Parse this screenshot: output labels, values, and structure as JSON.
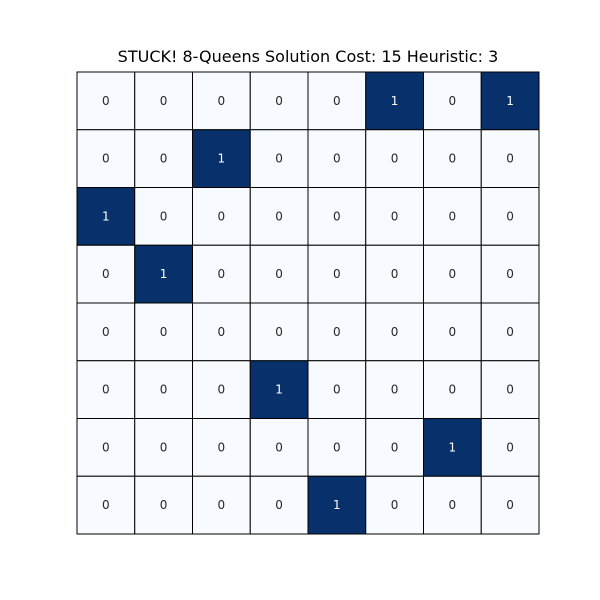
{
  "chart_data": {
    "type": "heatmap",
    "title": "STUCK! 8-Queens Solution Cost: 15 Heuristic: 3",
    "rows": 8,
    "cols": 8,
    "values": [
      [
        0,
        0,
        0,
        0,
        0,
        1,
        0,
        1
      ],
      [
        0,
        0,
        1,
        0,
        0,
        0,
        0,
        0
      ],
      [
        1,
        0,
        0,
        0,
        0,
        0,
        0,
        0
      ],
      [
        0,
        1,
        0,
        0,
        0,
        0,
        0,
        0
      ],
      [
        0,
        0,
        0,
        0,
        0,
        0,
        0,
        0
      ],
      [
        0,
        0,
        0,
        1,
        0,
        0,
        0,
        0
      ],
      [
        0,
        0,
        0,
        0,
        0,
        0,
        1,
        0
      ],
      [
        0,
        0,
        0,
        0,
        1,
        0,
        0,
        0
      ]
    ],
    "annotations": true,
    "colormap": {
      "low": "#f7fbff",
      "high": "#08306b",
      "text_on_low": "#262626",
      "text_on_high": "#ffffff"
    },
    "grid": true,
    "grid_color": "#000000",
    "xticks": false,
    "yticks": false,
    "colorbar": false
  }
}
